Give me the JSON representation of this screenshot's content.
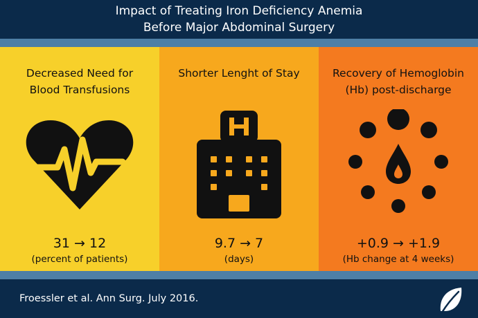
{
  "header": {
    "title_line1": "Impact of Treating Iron Deficiency Anemia",
    "title_line2": "Before Major Abdominal Surgery"
  },
  "panels": [
    {
      "title_line1": "Decreased Need for",
      "title_line2": "Blood Transfusions",
      "value": "31 → 12",
      "note": "(percent of patients)",
      "icon": "heart-pulse-icon",
      "bg": "#f7d02a"
    },
    {
      "title_line1": "Shorter Lenght of Stay",
      "title_line2": "",
      "value": "9.7 → 7",
      "note": "(days)",
      "icon": "hospital-icon",
      "bg": "#f7a81d"
    },
    {
      "title_line1": "Recovery of Hemoglobin",
      "title_line2": "(Hb) post-discharge",
      "value": "+0.9 → +1.9",
      "note": "(Hb change at 4 weeks)",
      "icon": "blood-drop-circle-icon",
      "bg": "#f47a1f"
    }
  ],
  "footer": {
    "citation": "Froessler et al. Ann Surg. July 2016.",
    "logo_icon": "leaf-icon"
  },
  "colors": {
    "navy": "#0b2a4a",
    "band": "#4e7fa6",
    "icon_dark": "#111111",
    "drop_accent": "#f47a1f"
  }
}
